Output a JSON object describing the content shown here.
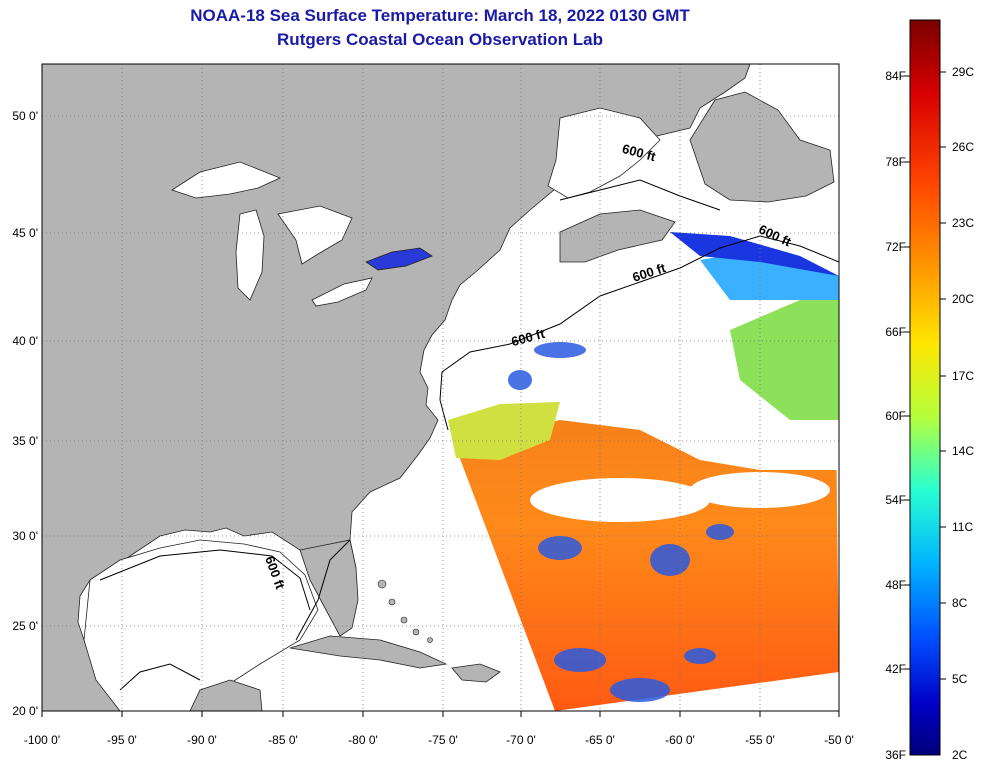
{
  "title": "NOAA-18 Sea Surface Temperature:  March 18, 2022 0130 GMT",
  "subtitle": "Rutgers Coastal Ocean Observation Lab",
  "map": {
    "lat_labels": [
      "50 0'",
      "45 0'",
      "40 0'",
      "35 0'",
      "30 0'",
      "25 0'",
      "20 0'"
    ],
    "lon_labels": [
      "-100 0'",
      "-95 0'",
      "-90 0'",
      "-85 0'",
      "-80 0'",
      "-75 0'",
      "-70 0'",
      "-65 0'",
      "-60 0'",
      "-55 0'",
      "-50 0'"
    ],
    "contour_labels": [
      "600 ft",
      "600 ft",
      "600 ft",
      "600 ft",
      "600 ft"
    ],
    "colors": {
      "land": "#b4b4b4",
      "cloud_or_nodata": "#ffffff",
      "title": "#1a1aa8"
    }
  },
  "colorbar": {
    "fahrenheit_labels": [
      "84F",
      "78F",
      "72F",
      "66F",
      "60F",
      "54F",
      "48F",
      "42F",
      "36F"
    ],
    "celsius_labels": [
      "29C",
      "26C",
      "23C",
      "20C",
      "17C",
      "14C",
      "11C",
      "8C",
      "5C",
      "2C"
    ],
    "stops": [
      "#7a0000",
      "#d80000",
      "#ff4400",
      "#ff9900",
      "#ffe600",
      "#b4ff3c",
      "#28ffd2",
      "#00b4ff",
      "#0050ff",
      "#0000c8",
      "#00007a"
    ]
  }
}
